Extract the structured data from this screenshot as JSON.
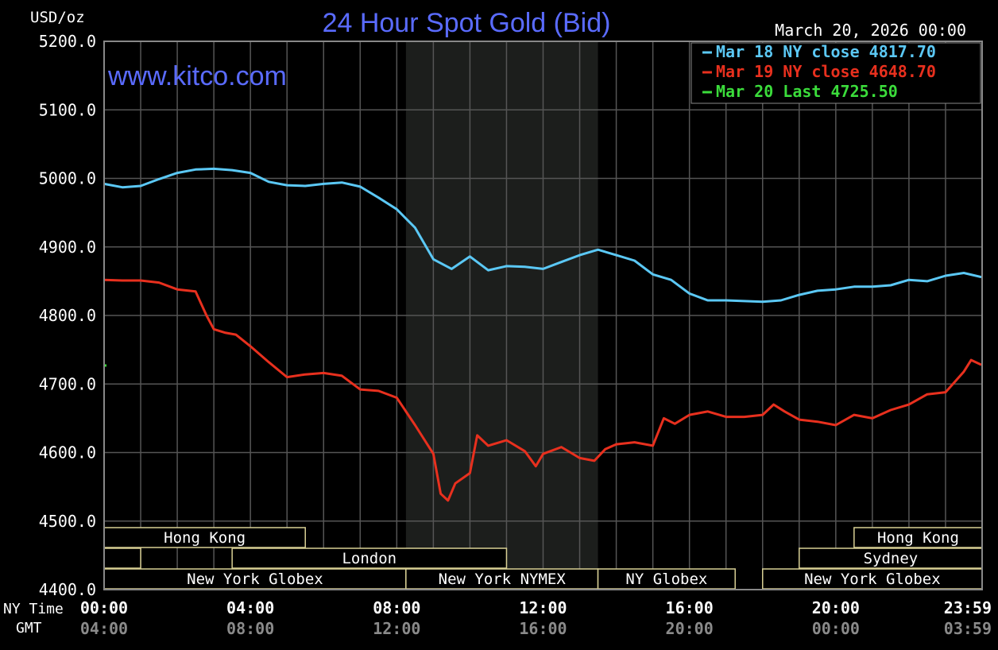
{
  "chart_data": {
    "type": "line",
    "title": "24 Hour Spot Gold (Bid)",
    "ylabel": "USD/oz",
    "date_label": "March 20, 2026 00:00",
    "watermark": "www.kitco.com",
    "ylim": [
      4400,
      5200
    ],
    "y_ticks": [
      "5200.0",
      "5100.0",
      "5000.0",
      "4900.0",
      "4800.0",
      "4700.0",
      "4600.0",
      "4500.0",
      "4400.0"
    ],
    "x_ticks": [
      {
        "ny": "00:00",
        "gmt": "04:00"
      },
      {
        "ny": "04:00",
        "gmt": "08:00"
      },
      {
        "ny": "08:00",
        "gmt": "12:00"
      },
      {
        "ny": "12:00",
        "gmt": "16:00"
      },
      {
        "ny": "16:00",
        "gmt": "20:00"
      },
      {
        "ny": "20:00",
        "gmt": "00:00"
      },
      {
        "ny": "23:59",
        "gmt": "03:59"
      }
    ],
    "x_row_labels": {
      "ny": "NY Time",
      "gmt": "GMT"
    },
    "grid": true,
    "legend_position": "top-right",
    "shaded_region": {
      "start_hour": 8.25,
      "end_hour": 13.5
    },
    "series": [
      {
        "name": "Mar 18 NY close",
        "legend_value": "4817.70",
        "color": "#5bc8f5",
        "points": [
          [
            0.0,
            4992
          ],
          [
            0.5,
            4987
          ],
          [
            1.0,
            4989
          ],
          [
            1.5,
            4999
          ],
          [
            2.0,
            5008
          ],
          [
            2.5,
            5013
          ],
          [
            3.0,
            5014
          ],
          [
            3.5,
            5012
          ],
          [
            4.0,
            5008
          ],
          [
            4.5,
            4995
          ],
          [
            5.0,
            4990
          ],
          [
            5.5,
            4989
          ],
          [
            6.0,
            4992
          ],
          [
            6.5,
            4994
          ],
          [
            7.0,
            4988
          ],
          [
            7.5,
            4972
          ],
          [
            8.0,
            4955
          ],
          [
            8.5,
            4928
          ],
          [
            9.0,
            4882
          ],
          [
            9.5,
            4868
          ],
          [
            10.0,
            4886
          ],
          [
            10.5,
            4866
          ],
          [
            11.0,
            4872
          ],
          [
            11.5,
            4871
          ],
          [
            12.0,
            4868
          ],
          [
            12.5,
            4878
          ],
          [
            13.0,
            4888
          ],
          [
            13.5,
            4896
          ],
          [
            14.0,
            4888
          ],
          [
            14.5,
            4880
          ],
          [
            15.0,
            4860
          ],
          [
            15.5,
            4852
          ],
          [
            16.0,
            4832
          ],
          [
            16.5,
            4822
          ],
          [
            17.0,
            4822
          ],
          [
            17.5,
            4821
          ],
          [
            18.0,
            4820
          ],
          [
            18.5,
            4822
          ],
          [
            19.0,
            4830
          ],
          [
            19.5,
            4836
          ],
          [
            20.0,
            4838
          ],
          [
            20.5,
            4842
          ],
          [
            21.0,
            4842
          ],
          [
            21.5,
            4844
          ],
          [
            22.0,
            4852
          ],
          [
            22.5,
            4850
          ],
          [
            23.0,
            4858
          ],
          [
            23.5,
            4862
          ],
          [
            23.98,
            4856
          ]
        ]
      },
      {
        "name": "Mar 19 NY close",
        "legend_value": "4648.70",
        "color": "#e8301e",
        "points": [
          [
            0.0,
            4852
          ],
          [
            0.5,
            4851
          ],
          [
            1.0,
            4851
          ],
          [
            1.5,
            4848
          ],
          [
            2.0,
            4838
          ],
          [
            2.5,
            4835
          ],
          [
            2.8,
            4800
          ],
          [
            3.0,
            4780
          ],
          [
            3.3,
            4775
          ],
          [
            3.6,
            4772
          ],
          [
            4.0,
            4755
          ],
          [
            4.5,
            4732
          ],
          [
            5.0,
            4710
          ],
          [
            5.5,
            4714
          ],
          [
            6.0,
            4716
          ],
          [
            6.5,
            4712
          ],
          [
            7.0,
            4692
          ],
          [
            7.5,
            4690
          ],
          [
            8.0,
            4680
          ],
          [
            8.5,
            4640
          ],
          [
            9.0,
            4598
          ],
          [
            9.2,
            4540
          ],
          [
            9.4,
            4530
          ],
          [
            9.6,
            4555
          ],
          [
            10.0,
            4570
          ],
          [
            10.2,
            4625
          ],
          [
            10.5,
            4610
          ],
          [
            11.0,
            4618
          ],
          [
            11.5,
            4602
          ],
          [
            11.8,
            4580
          ],
          [
            12.0,
            4598
          ],
          [
            12.5,
            4608
          ],
          [
            13.0,
            4592
          ],
          [
            13.4,
            4588
          ],
          [
            13.7,
            4605
          ],
          [
            14.0,
            4612
          ],
          [
            14.5,
            4615
          ],
          [
            15.0,
            4610
          ],
          [
            15.3,
            4650
          ],
          [
            15.6,
            4642
          ],
          [
            16.0,
            4655
          ],
          [
            16.5,
            4660
          ],
          [
            17.0,
            4652
          ],
          [
            17.5,
            4652
          ],
          [
            18.0,
            4655
          ],
          [
            18.3,
            4670
          ],
          [
            18.6,
            4660
          ],
          [
            19.0,
            4648
          ],
          [
            19.5,
            4645
          ],
          [
            20.0,
            4640
          ],
          [
            20.5,
            4655
          ],
          [
            21.0,
            4650
          ],
          [
            21.5,
            4662
          ],
          [
            22.0,
            4670
          ],
          [
            22.5,
            4685
          ],
          [
            23.0,
            4688
          ],
          [
            23.5,
            4718
          ],
          [
            23.7,
            4735
          ],
          [
            23.98,
            4728
          ]
        ]
      },
      {
        "name": "Mar 20 Last",
        "legend_value": "4725.50",
        "color": "#3bdc3b",
        "points": [
          [
            0.0,
            4727
          ]
        ]
      }
    ],
    "sessions": [
      {
        "label": "Hong Kong",
        "row": 0,
        "start": 0.0,
        "end": 5.5
      },
      {
        "label": "",
        "row": 1,
        "start": 0.0,
        "end": 1.0
      },
      {
        "label": "London",
        "row": 1,
        "start": 3.5,
        "end": 11.0
      },
      {
        "label": "New York Globex",
        "row": 2,
        "start": 0.0,
        "end": 8.25
      },
      {
        "label": "New York NYMEX",
        "row": 2,
        "start": 8.25,
        "end": 13.5
      },
      {
        "label": "NY Globex",
        "row": 2,
        "start": 13.5,
        "end": 17.25
      },
      {
        "label": "Hong Kong",
        "row": 0,
        "start": 20.5,
        "end": 24.0
      },
      {
        "label": "Sydney",
        "row": 1,
        "start": 19.0,
        "end": 24.0
      },
      {
        "label": "New York Globex",
        "row": 2,
        "start": 18.0,
        "end": 24.0
      }
    ]
  }
}
